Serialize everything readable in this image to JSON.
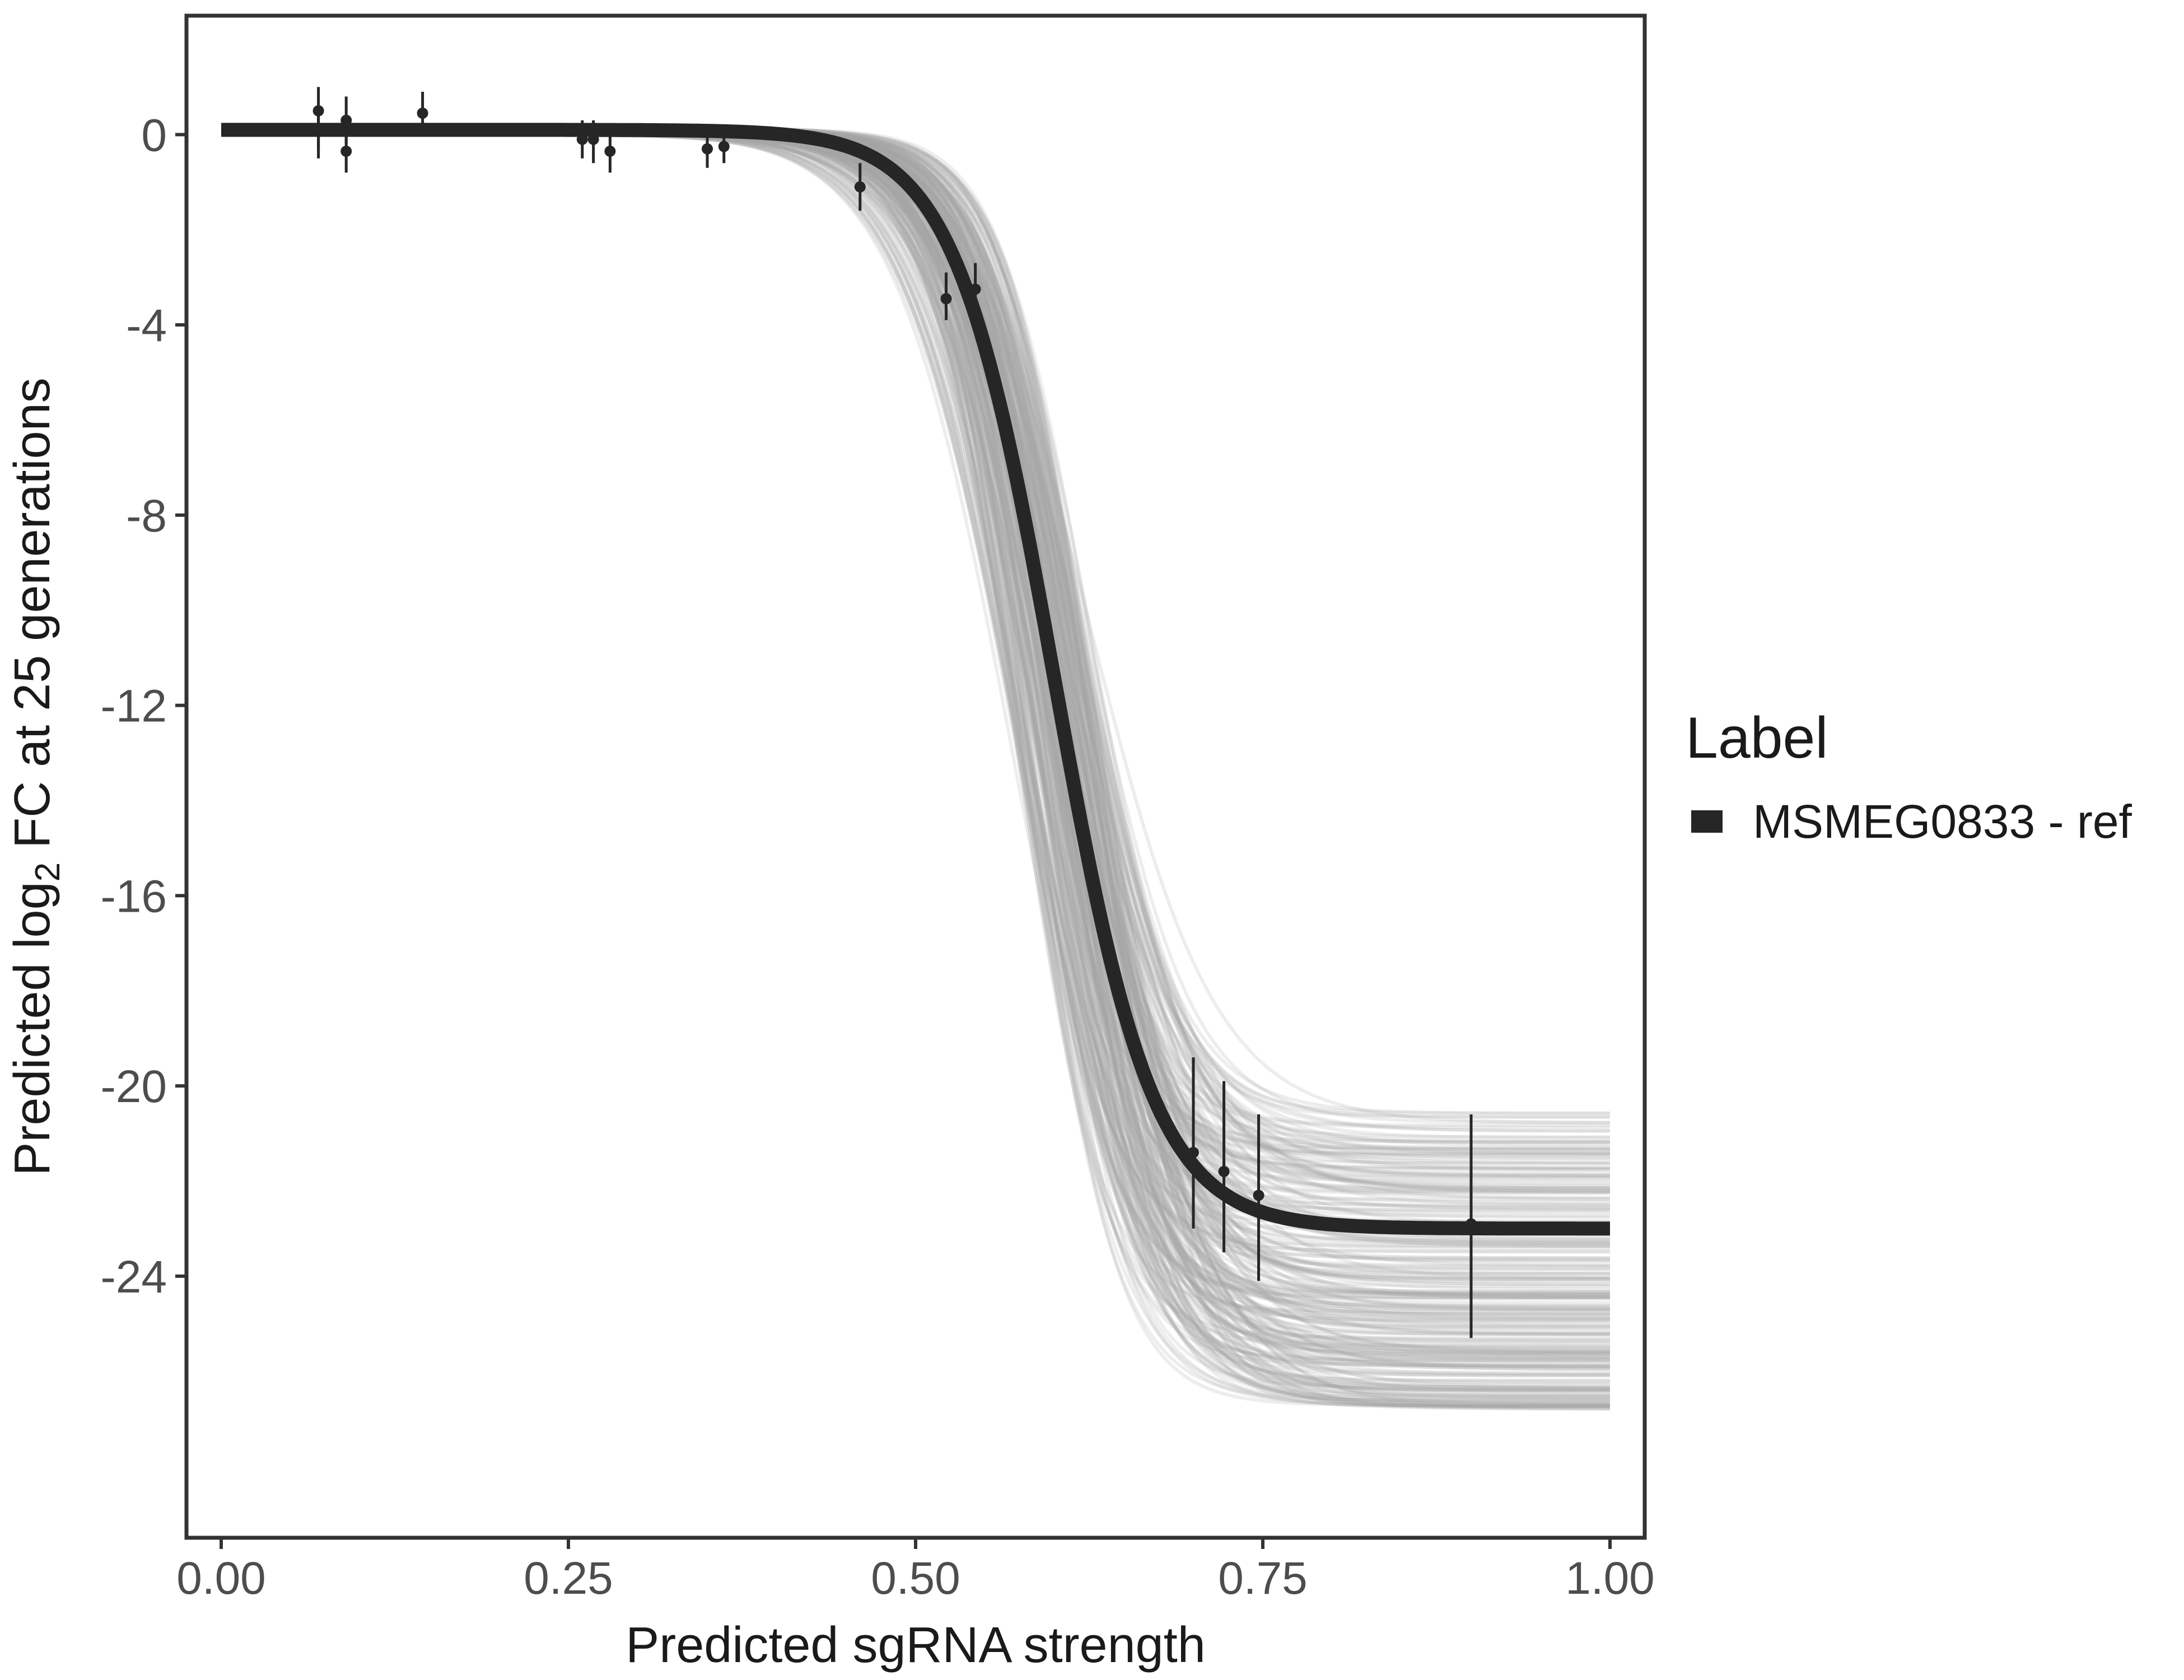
{
  "chart_data": {
    "type": "line",
    "title": "",
    "xlabel": "Predicted sgRNA strength",
    "ylabel": {
      "before": "Predicted  log",
      "subscript": "2",
      "after": " FC at 25 generations"
    },
    "xlim": [
      -0.025,
      1.025
    ],
    "ylim": [
      -29.5,
      2.5
    ],
    "x_ticks": [
      0,
      0.25,
      0.5,
      0.75,
      1
    ],
    "x_tick_labels": [
      "0.00",
      "0.25",
      "0.50",
      "0.75",
      "1.00"
    ],
    "y_ticks": [
      0,
      -4,
      -8,
      -12,
      -16,
      -20,
      -24
    ],
    "y_tick_labels": [
      "0",
      "-4",
      "-8",
      "-12",
      "-16",
      "-20",
      "-24"
    ],
    "grid": false,
    "legend": {
      "title": "Label",
      "position": "right",
      "entries": [
        "MSMEG0833 - ref"
      ]
    },
    "fitted_curve": {
      "name": "MSMEG0833 - ref",
      "color": "#262626",
      "model": "logistic",
      "upper": 0.1,
      "lower": -23.0,
      "midpoint": 0.6,
      "slope": 28,
      "x_range": [
        0.0,
        1.0
      ]
    },
    "posterior_draws": {
      "color": "#a6a6a6",
      "count": 260,
      "upper_range": [
        0.0,
        0.15
      ],
      "lower_range": [
        -26.8,
        -20.5
      ],
      "midpoint_range": [
        0.57,
        0.63
      ],
      "slope_range": [
        22,
        34
      ]
    },
    "points": [
      {
        "x": 0.07,
        "y": 0.5,
        "ymin": -0.3,
        "ymax": 1.0
      },
      {
        "x": 0.07,
        "y": 0.1,
        "ymin": -0.5,
        "ymax": 0.6
      },
      {
        "x": 0.09,
        "y": 0.3,
        "ymin": -0.2,
        "ymax": 0.8
      },
      {
        "x": 0.09,
        "y": -0.35,
        "ymin": -0.8,
        "ymax": 0.1
      },
      {
        "x": 0.145,
        "y": 0.45,
        "ymin": 0.0,
        "ymax": 0.9
      },
      {
        "x": 0.26,
        "y": -0.1,
        "ymin": -0.5,
        "ymax": 0.3
      },
      {
        "x": 0.268,
        "y": -0.1,
        "ymin": -0.6,
        "ymax": 0.3
      },
      {
        "x": 0.28,
        "y": -0.35,
        "ymin": -0.8,
        "ymax": 0.2
      },
      {
        "x": 0.35,
        "y": -0.3,
        "ymin": -0.7,
        "ymax": 0.1
      },
      {
        "x": 0.362,
        "y": -0.25,
        "ymin": -0.6,
        "ymax": 0.1
      },
      {
        "x": 0.46,
        "y": -1.1,
        "ymin": -1.6,
        "ymax": -0.6
      },
      {
        "x": 0.522,
        "y": -3.45,
        "ymin": -3.9,
        "ymax": -2.9
      },
      {
        "x": 0.543,
        "y": -3.25,
        "ymin": -3.7,
        "ymax": -2.7
      },
      {
        "x": 0.7,
        "y": -21.4,
        "ymin": -23.0,
        "ymax": -19.4
      },
      {
        "x": 0.722,
        "y": -21.8,
        "ymin": -23.5,
        "ymax": -19.9
      },
      {
        "x": 0.747,
        "y": -22.3,
        "ymin": -24.1,
        "ymax": -20.6
      },
      {
        "x": 0.9,
        "y": -22.9,
        "ymin": -25.3,
        "ymax": -20.6
      }
    ]
  }
}
